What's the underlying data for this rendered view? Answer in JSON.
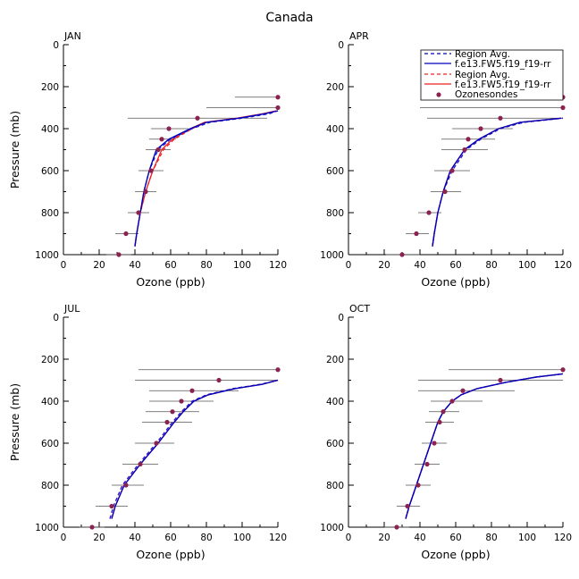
{
  "figure_title": "Canada",
  "colors": {
    "model_dashed": "#2222dd",
    "model_solid": "#0000bb",
    "model_red": "#ee2222",
    "obs_marker": "#8b2252",
    "error_bar": "#555555"
  },
  "legend": {
    "entries": [
      {
        "label": "Region Avg.",
        "style": "dashed-blue"
      },
      {
        "label": "f.e13.FW5.f19_f19-rr",
        "style": "solid-blue"
      },
      {
        "label": "Region Avg.",
        "style": "dashed-red"
      },
      {
        "label": "f.e13.FW5.f19_f19-rr",
        "style": "solid-red"
      },
      {
        "label": "Ozonesondes",
        "style": "marker"
      }
    ]
  },
  "chart_data": [
    {
      "type": "line",
      "title": "JAN",
      "xlabel": "Ozone (ppb)",
      "ylabel": "Pressure (mb)",
      "xlim": [
        0,
        120
      ],
      "ylim": [
        1000,
        0
      ],
      "xticks": [
        0,
        20,
        40,
        60,
        80,
        100,
        120
      ],
      "yticks": [
        0,
        200,
        400,
        600,
        800,
        1000
      ],
      "pressure": [
        960,
        900,
        800,
        700,
        600,
        500,
        450,
        400,
        370,
        350,
        330,
        315
      ],
      "series": [
        {
          "name": "Region Avg. (blue dashed)",
          "values": [
            40,
            41,
            43,
            45,
            48,
            53,
            60,
            72,
            82,
            100,
            115,
            122
          ]
        },
        {
          "name": "f.e13.FW5.f19_f19-rr (blue)",
          "values": [
            40,
            41,
            43,
            45,
            48,
            52,
            59,
            71,
            80,
            98,
            112,
            120
          ]
        },
        {
          "name": "Region Avg. (red dashed)",
          "values": [
            40,
            41,
            43,
            46,
            50,
            56,
            62,
            72,
            80,
            98,
            112,
            120
          ]
        },
        {
          "name": "f.e13.FW5.f19_f19-rr (red)",
          "values": [
            40,
            41,
            43,
            46,
            50,
            55,
            61,
            71,
            79,
            97,
            111,
            119
          ]
        }
      ],
      "ozonesondes": [
        {
          "p": 1000,
          "o3": 31,
          "lo": 24,
          "hi": 38
        },
        {
          "p": 900,
          "o3": 35,
          "lo": 29,
          "hi": 42
        },
        {
          "p": 800,
          "o3": 42,
          "lo": 36,
          "hi": 48
        },
        {
          "p": 700,
          "o3": 46,
          "lo": 40,
          "hi": 52
        },
        {
          "p": 600,
          "o3": 49,
          "lo": 42,
          "hi": 56
        },
        {
          "p": 500,
          "o3": 53,
          "lo": 46,
          "hi": 60
        },
        {
          "p": 450,
          "o3": 55,
          "lo": 48,
          "hi": 63
        },
        {
          "p": 400,
          "o3": 59,
          "lo": 49,
          "hi": 70
        },
        {
          "p": 350,
          "o3": 75,
          "lo": 36,
          "hi": 114
        },
        {
          "p": 300,
          "o3": 120,
          "lo": 80,
          "hi": 120
        },
        {
          "p": 250,
          "o3": 120,
          "lo": 96,
          "hi": 120
        }
      ]
    },
    {
      "type": "line",
      "title": "APR",
      "xlabel": "Ozone (ppb)",
      "ylabel": "Pressure (mb)",
      "xlim": [
        0,
        120
      ],
      "ylim": [
        1000,
        0
      ],
      "xticks": [
        0,
        20,
        40,
        60,
        80,
        100,
        120
      ],
      "yticks": [
        0,
        200,
        400,
        600,
        800,
        1000
      ],
      "pressure": [
        960,
        900,
        800,
        700,
        600,
        500,
        450,
        400,
        370,
        350
      ],
      "series": [
        {
          "name": "Region Avg. (blue dashed)",
          "values": [
            47,
            48,
            50,
            53,
            58,
            66,
            74,
            85,
            98,
            120
          ]
        },
        {
          "name": "f.e13.FW5.f19_f19-rr (blue)",
          "values": [
            47,
            48,
            50,
            53,
            57,
            65,
            73,
            84,
            96,
            119
          ]
        },
        {
          "name": "Region Avg. (red dashed)",
          "values": [
            47,
            48,
            50,
            53,
            58,
            66,
            74,
            85,
            98,
            120
          ]
        },
        {
          "name": "f.e13.FW5.f19_f19-rr (red)",
          "values": [
            47,
            48,
            50,
            53,
            57,
            65,
            73,
            84,
            96,
            119
          ]
        }
      ],
      "ozonesondes": [
        {
          "p": 1000,
          "o3": 30,
          "lo": 21,
          "hi": 40
        },
        {
          "p": 900,
          "o3": 38,
          "lo": 32,
          "hi": 45
        },
        {
          "p": 800,
          "o3": 45,
          "lo": 39,
          "hi": 52
        },
        {
          "p": 700,
          "o3": 54,
          "lo": 46,
          "hi": 63
        },
        {
          "p": 600,
          "o3": 58,
          "lo": 48,
          "hi": 68
        },
        {
          "p": 500,
          "o3": 65,
          "lo": 52,
          "hi": 78
        },
        {
          "p": 450,
          "o3": 67,
          "lo": 52,
          "hi": 82
        },
        {
          "p": 400,
          "o3": 74,
          "lo": 58,
          "hi": 92
        },
        {
          "p": 350,
          "o3": 85,
          "lo": 44,
          "hi": 122
        },
        {
          "p": 300,
          "o3": 122,
          "lo": 40,
          "hi": 122
        },
        {
          "p": 250,
          "o3": 122,
          "lo": 62,
          "hi": 122
        }
      ]
    },
    {
      "type": "line",
      "title": "JUL",
      "xlabel": "Ozone (ppb)",
      "ylabel": "Pressure (mb)",
      "xlim": [
        0,
        120
      ],
      "ylim": [
        1000,
        0
      ],
      "xticks": [
        0,
        20,
        40,
        60,
        80,
        100,
        120
      ],
      "yticks": [
        0,
        200,
        400,
        600,
        800,
        1000
      ],
      "pressure": [
        960,
        900,
        800,
        700,
        600,
        500,
        450,
        400,
        370,
        340,
        320,
        300
      ],
      "series": [
        {
          "name": "Region Avg. (blue dashed)",
          "values": [
            26,
            28,
            33,
            42,
            52,
            61,
            66,
            72,
            80,
            95,
            110,
            121
          ]
        },
        {
          "name": "f.e13.FW5.f19_f19-rr (blue)",
          "values": [
            27,
            29,
            34,
            43,
            53,
            62,
            67,
            73,
            81,
            96,
            111,
            121
          ]
        },
        {
          "name": "Region Avg. (red dashed)",
          "values": [
            26,
            28,
            33,
            42,
            52,
            61,
            66,
            72,
            80,
            95,
            110,
            121
          ]
        },
        {
          "name": "f.e13.FW5.f19_f19-rr (red)",
          "values": [
            27,
            29,
            34,
            43,
            53,
            62,
            67,
            73,
            81,
            96,
            111,
            121
          ]
        }
      ],
      "ozonesondes": [
        {
          "p": 1000,
          "o3": 16,
          "lo": 9,
          "hi": 23
        },
        {
          "p": 900,
          "o3": 27,
          "lo": 18,
          "hi": 36
        },
        {
          "p": 800,
          "o3": 35,
          "lo": 27,
          "hi": 45
        },
        {
          "p": 700,
          "o3": 43,
          "lo": 33,
          "hi": 53
        },
        {
          "p": 600,
          "o3": 52,
          "lo": 40,
          "hi": 62
        },
        {
          "p": 500,
          "o3": 58,
          "lo": 44,
          "hi": 72
        },
        {
          "p": 450,
          "o3": 61,
          "lo": 46,
          "hi": 76
        },
        {
          "p": 400,
          "o3": 66,
          "lo": 48,
          "hi": 84
        },
        {
          "p": 350,
          "o3": 72,
          "lo": 48,
          "hi": 98
        },
        {
          "p": 300,
          "o3": 87,
          "lo": 40,
          "hi": 121
        },
        {
          "p": 250,
          "o3": 121,
          "lo": 42,
          "hi": 121
        }
      ]
    },
    {
      "type": "line",
      "title": "OCT",
      "xlabel": "Ozone (ppb)",
      "ylabel": "Pressure (mb)",
      "xlim": [
        0,
        120
      ],
      "ylim": [
        1000,
        0
      ],
      "xticks": [
        0,
        20,
        40,
        60,
        80,
        100,
        120
      ],
      "yticks": [
        0,
        200,
        400,
        600,
        800,
        1000
      ],
      "pressure": [
        960,
        900,
        800,
        700,
        600,
        500,
        450,
        400,
        370,
        340,
        310,
        285,
        270
      ],
      "series": [
        {
          "name": "Region Avg. (blue dashed)",
          "values": [
            32,
            34,
            38,
            42,
            46,
            50,
            53,
            58,
            63,
            72,
            88,
            105,
            120
          ]
        },
        {
          "name": "f.e13.FW5.f19_f19-rr (blue)",
          "values": [
            32,
            34,
            38,
            42,
            46,
            50,
            53,
            58,
            63,
            72,
            88,
            105,
            120
          ]
        },
        {
          "name": "Region Avg. (red dashed)",
          "values": [
            32,
            34,
            38,
            42,
            46,
            50,
            53,
            58,
            63,
            72,
            88,
            105,
            120
          ]
        },
        {
          "name": "f.e13.FW5.f19_f19-rr (red)",
          "values": [
            32,
            34,
            38,
            42,
            46,
            50,
            53,
            58,
            63,
            72,
            88,
            105,
            120
          ]
        }
      ],
      "ozonesondes": [
        {
          "p": 1000,
          "o3": 27,
          "lo": 20,
          "hi": 34
        },
        {
          "p": 900,
          "o3": 33,
          "lo": 27,
          "hi": 40
        },
        {
          "p": 800,
          "o3": 39,
          "lo": 32,
          "hi": 46
        },
        {
          "p": 700,
          "o3": 44,
          "lo": 37,
          "hi": 51
        },
        {
          "p": 600,
          "o3": 48,
          "lo": 41,
          "hi": 55
        },
        {
          "p": 500,
          "o3": 51,
          "lo": 43,
          "hi": 59
        },
        {
          "p": 450,
          "o3": 53,
          "lo": 45,
          "hi": 62
        },
        {
          "p": 400,
          "o3": 58,
          "lo": 46,
          "hi": 75
        },
        {
          "p": 350,
          "o3": 64,
          "lo": 39,
          "hi": 93
        },
        {
          "p": 300,
          "o3": 85,
          "lo": 39,
          "hi": 123
        },
        {
          "p": 250,
          "o3": 123,
          "lo": 56,
          "hi": 123
        }
      ]
    }
  ]
}
